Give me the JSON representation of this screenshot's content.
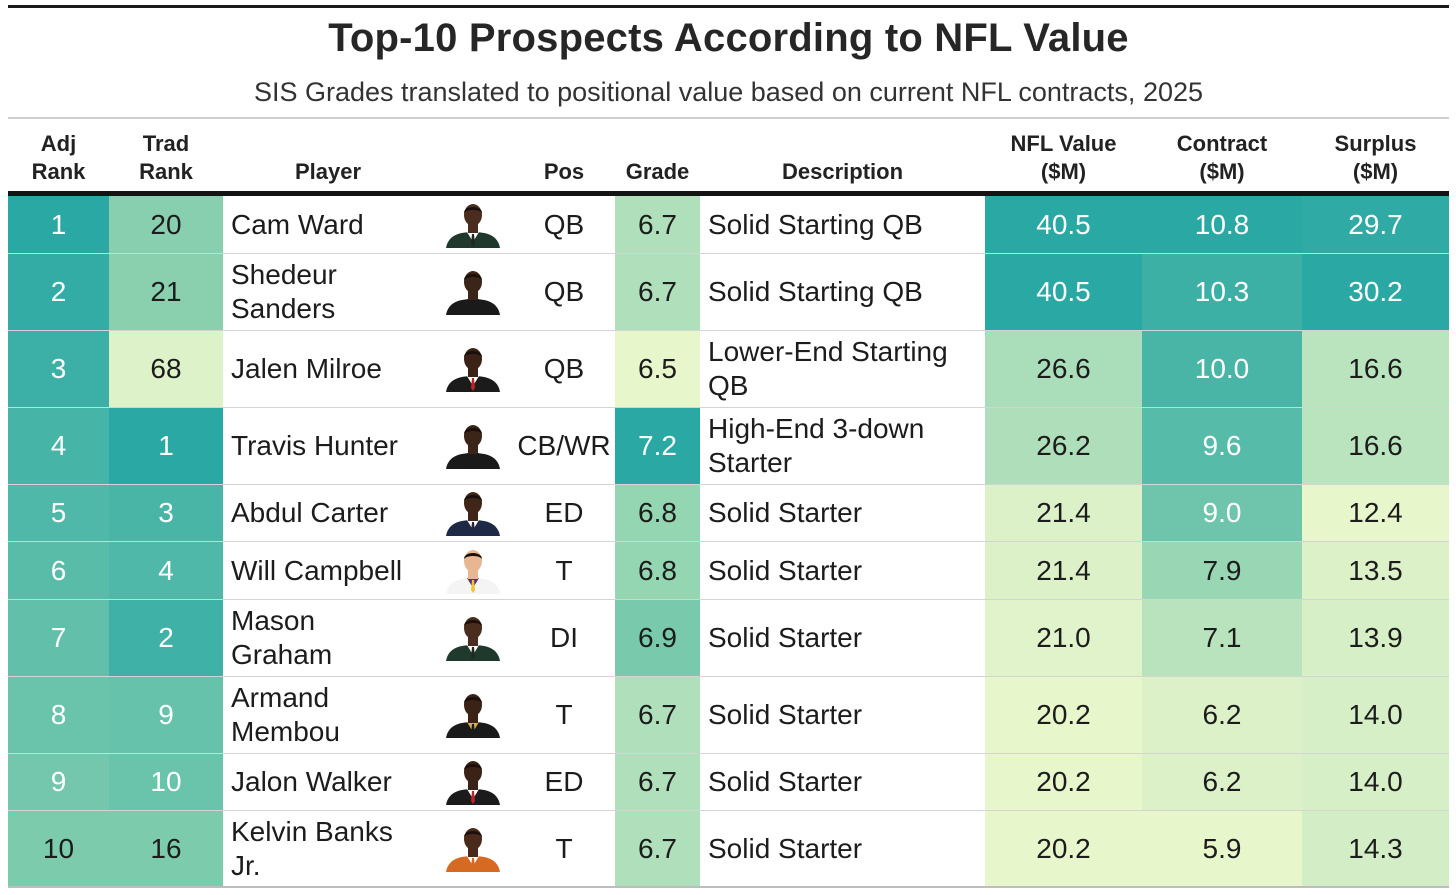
{
  "title": "Top-10 Prospects According to NFL Value",
  "subtitle": "SIS Grades translated to positional value based on current NFL contracts, 2025",
  "headers": {
    "adj_rank": [
      "Adj",
      "Rank"
    ],
    "trad_rank": [
      "Trad",
      "Rank"
    ],
    "player": "Player",
    "pos": "Pos",
    "grade": "Grade",
    "description": "Description",
    "nfl_value": [
      "NFL Value",
      "($M)"
    ],
    "contract": [
      "Contract",
      "($M)"
    ],
    "surplus": [
      "Surplus",
      "($M)"
    ]
  },
  "chart_data": {
    "type": "table",
    "title": "Top-10 Prospects According to NFL Value",
    "subtitle": "SIS Grades translated to positional value based on current NFL contracts, 2025",
    "columns": [
      "Adj Rank",
      "Trad Rank",
      "Player",
      "Pos",
      "Grade",
      "Description",
      "NFL Value ($M)",
      "Contract ($M)",
      "Surplus ($M)"
    ],
    "rows": [
      {
        "adj_rank": "1",
        "trad_rank": "20",
        "player": "Cam Ward",
        "pos": "QB",
        "grade": "6.7",
        "description": "Solid Starting QB",
        "nfl_value": "40.5",
        "contract": "10.8",
        "surplus": "29.7",
        "headshot": "player-headshot-dark-suit"
      },
      {
        "adj_rank": "2",
        "trad_rank": "21",
        "player": "Shedeur Sanders",
        "pos": "QB",
        "grade": "6.7",
        "description": "Solid Starting QB",
        "nfl_value": "40.5",
        "contract": "10.3",
        "surplus": "30.2",
        "headshot": "player-headshot-dark-jersey"
      },
      {
        "adj_rank": "3",
        "trad_rank": "68",
        "player": "Jalen Milroe",
        "pos": "QB",
        "grade": "6.5",
        "description": "Lower-End Starting QB",
        "nfl_value": "26.6",
        "contract": "10.0",
        "surplus": "16.6",
        "headshot": "player-headshot-suit-red-tie"
      },
      {
        "adj_rank": "4",
        "trad_rank": "1",
        "player": "Travis Hunter",
        "pos": "CB/WR",
        "grade": "7.2",
        "description": "High-End 3-down Starter",
        "nfl_value": "26.2",
        "contract": "9.6",
        "surplus": "16.6",
        "headshot": "player-headshot-dark-jersey"
      },
      {
        "adj_rank": "5",
        "trad_rank": "3",
        "player": "Abdul Carter",
        "pos": "ED",
        "grade": "6.8",
        "description": "Solid Starter",
        "nfl_value": "21.4",
        "contract": "9.0",
        "surplus": "12.4",
        "headshot": "player-headshot-navy-suit"
      },
      {
        "adj_rank": "6",
        "trad_rank": "4",
        "player": "Will Campbell",
        "pos": "T",
        "grade": "6.8",
        "description": "Solid Starter",
        "nfl_value": "21.4",
        "contract": "7.9",
        "surplus": "13.5",
        "headshot": "player-headshot-white-jersey"
      },
      {
        "adj_rank": "7",
        "trad_rank": "2",
        "player": "Mason Graham",
        "pos": "DI",
        "grade": "6.9",
        "description": "Solid Starter",
        "nfl_value": "21.0",
        "contract": "7.1",
        "surplus": "13.9",
        "headshot": "player-headshot-dark-suit"
      },
      {
        "adj_rank": "8",
        "trad_rank": "9",
        "player": "Armand Membou",
        "pos": "T",
        "grade": "6.7",
        "description": "Solid Starter",
        "nfl_value": "20.2",
        "contract": "6.2",
        "surplus": "14.0",
        "headshot": "player-headshot-black-gold-jersey"
      },
      {
        "adj_rank": "9",
        "trad_rank": "10",
        "player": "Jalon Walker",
        "pos": "ED",
        "grade": "6.7",
        "description": "Solid Starter",
        "nfl_value": "20.2",
        "contract": "6.2",
        "surplus": "14.0",
        "headshot": "player-headshot-suit-red-tie"
      },
      {
        "adj_rank": "10",
        "trad_rank": "16",
        "player": "Kelvin Banks Jr.",
        "pos": "T",
        "grade": "6.7",
        "description": "Solid Starter",
        "nfl_value": "20.2",
        "contract": "5.9",
        "surplus": "14.3",
        "headshot": "player-headshot-orange-jersey"
      }
    ]
  },
  "color_scale": {
    "dark": "#2aa8a4",
    "mid": "#86cfae",
    "light": "#e8f6cc",
    "white_text": "#ffffff",
    "dark_text": "#1c1c1c"
  }
}
